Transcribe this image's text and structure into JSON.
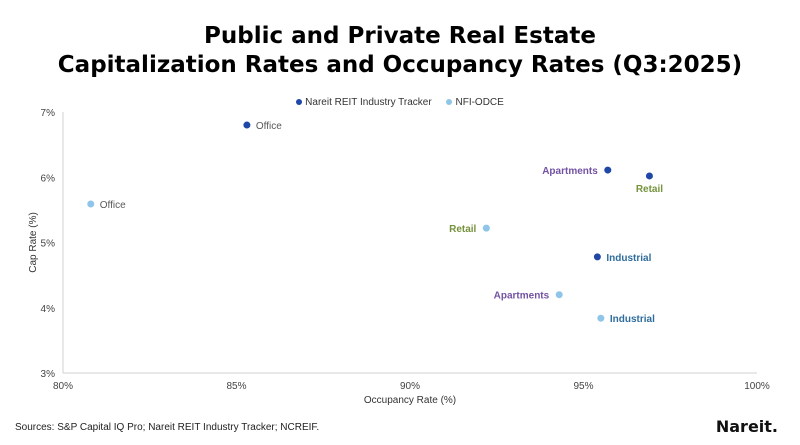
{
  "chart_data": {
    "type": "scatter",
    "title": [
      "Public and Private Real Estate",
      "Capitalization Rates and Occupancy Rates (Q3:2025)"
    ],
    "xlabel": "Occupancy Rate (%)",
    "ylabel": "Cap Rate (%)",
    "xlim": [
      80,
      100
    ],
    "ylim": [
      3,
      7
    ],
    "xticks": [
      80,
      85,
      90,
      95,
      100
    ],
    "yticks": [
      3,
      4,
      5,
      6,
      7
    ],
    "xtick_labels": [
      "80%",
      "85%",
      "90%",
      "95%",
      "100%"
    ],
    "ytick_labels": [
      "3%",
      "4%",
      "5%",
      "6%",
      "7%"
    ],
    "grid": false,
    "legend_position": "top",
    "series": [
      {
        "name": "Nareit REIT Industry Tracker",
        "color": "#1f47a6",
        "points": [
          {
            "label": "Office",
            "x": 85.3,
            "y": 6.8,
            "label_pos": "right"
          },
          {
            "label": "Apartments",
            "x": 95.7,
            "y": 6.11,
            "label_pos": "left"
          },
          {
            "label": "Retail",
            "x": 96.9,
            "y": 6.02,
            "label_pos": "below"
          },
          {
            "label": "Industrial",
            "x": 95.4,
            "y": 4.78,
            "label_pos": "right"
          }
        ]
      },
      {
        "name": "NFI-ODCE",
        "color": "#8ec5e8",
        "points": [
          {
            "label": "Office",
            "x": 80.8,
            "y": 5.59,
            "label_pos": "right"
          },
          {
            "label": "Retail",
            "x": 92.2,
            "y": 5.22,
            "label_pos": "left"
          },
          {
            "label": "Apartments",
            "x": 94.3,
            "y": 4.2,
            "label_pos": "left"
          },
          {
            "label": "Industrial",
            "x": 95.5,
            "y": 3.84,
            "label_pos": "right"
          }
        ]
      }
    ],
    "label_colors": {
      "Office": "#595959",
      "Apartments": "#7352a3",
      "Retail": "#76923c",
      "Industrial": "#2f6d9c"
    }
  },
  "footer": {
    "sources": "Sources: S&P Capital IQ Pro; Nareit REIT Industry Tracker; NCREIF.",
    "logo": "Nareit."
  }
}
